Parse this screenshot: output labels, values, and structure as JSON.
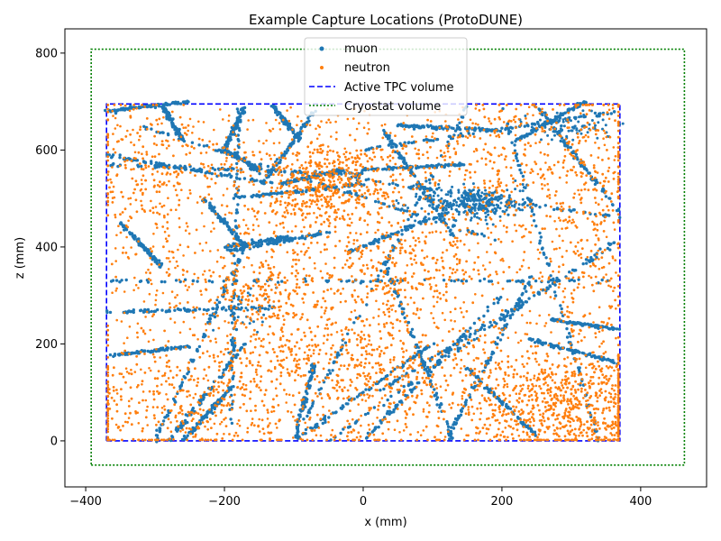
{
  "chart_data": {
    "type": "scatter",
    "title": "Example Capture Locations (ProtoDUNE)",
    "xlabel": "x (mm)",
    "ylabel": "z (mm)",
    "xlim": [
      -430,
      495
    ],
    "ylim": [
      -95,
      850
    ],
    "xticks": [
      -400,
      -200,
      0,
      200,
      400
    ],
    "xtick_labels": [
      "−400",
      "−200",
      "0",
      "200",
      "400"
    ],
    "yticks": [
      0,
      200,
      400,
      600,
      800
    ],
    "ytick_labels": [
      "0",
      "200",
      "400",
      "600",
      "800"
    ],
    "grid": false,
    "legend_position": "top-center",
    "series": [
      {
        "name": "muon",
        "color": "#1f77b4",
        "marker": "circle",
        "track_segments": [
          [
            -370,
            680,
            -250,
            700
          ],
          [
            -370,
            570,
            0,
            550
          ],
          [
            -370,
            330,
            370,
            330
          ],
          [
            -370,
            265,
            -130,
            275
          ],
          [
            -370,
            175,
            -250,
            195
          ],
          [
            -370,
            590,
            -130,
            530
          ],
          [
            -320,
            650,
            200,
            410
          ],
          [
            -50,
            550,
            370,
            460
          ],
          [
            0,
            560,
            150,
            570
          ],
          [
            -120,
            530,
            -30,
            560
          ],
          [
            -190,
            500,
            0,
            530
          ],
          [
            -200,
            400,
            -110,
            420
          ],
          [
            -200,
            390,
            -50,
            430
          ],
          [
            0,
            600,
            370,
            680
          ],
          [
            -190,
            0,
            -180,
            690
          ],
          [
            -200,
            600,
            -170,
            690
          ],
          [
            -300,
            0,
            -170,
            400
          ],
          [
            -230,
            500,
            -170,
            400
          ],
          [
            -290,
            690,
            -260,
            620
          ],
          [
            -350,
            450,
            -290,
            360
          ],
          [
            -280,
            0,
            -170,
            200
          ],
          [
            -260,
            0,
            -190,
            110
          ],
          [
            -100,
            0,
            -70,
            160
          ],
          [
            -100,
            0,
            150,
            690
          ],
          [
            30,
            370,
            130,
            0
          ],
          [
            -20,
            390,
            120,
            470
          ],
          [
            -50,
            0,
            370,
            420
          ],
          [
            120,
            0,
            250,
            360
          ],
          [
            0,
            0,
            200,
            300
          ],
          [
            20,
            100,
            360,
            400
          ],
          [
            -100,
            0,
            100,
            200
          ],
          [
            200,
            690,
            340,
            0
          ],
          [
            250,
            690,
            370,
            470
          ],
          [
            -70,
            680,
            -150,
            520
          ],
          [
            30,
            640,
            130,
            420
          ],
          [
            240,
            210,
            370,
            160
          ],
          [
            270,
            250,
            370,
            230
          ],
          [
            150,
            150,
            250,
            10
          ],
          [
            -130,
            690,
            -90,
            620
          ],
          [
            50,
            650,
            200,
            640
          ],
          [
            -200,
            600,
            -150,
            560
          ],
          [
            220,
            620,
            320,
            700
          ]
        ],
        "track_samples_per_segment": 90,
        "clusters": [
          {
            "center": [
              160,
              490
            ],
            "spread": [
              35,
              18
            ],
            "count": 320
          },
          {
            "center": [
              300,
              650
            ],
            "spread": [
              30,
              15
            ],
            "count": 90
          },
          {
            "center": [
              -180,
              270
            ],
            "spread": [
              20,
              25
            ],
            "count": 40
          }
        ]
      },
      {
        "name": "neutron",
        "color": "#ff7f0e",
        "marker": "circle",
        "clusters": [
          {
            "center": [
              -60,
              530
            ],
            "spread": [
              55,
              45
            ],
            "count": 500
          },
          {
            "center": [
              300,
              70
            ],
            "spread": [
              70,
              60
            ],
            "count": 700
          },
          {
            "center": [
              -150,
              310
            ],
            "spread": [
              45,
              35
            ],
            "count": 180
          },
          {
            "center": [
              60,
              350
            ],
            "spread": [
              70,
              45
            ],
            "count": 220
          },
          {
            "center": [
              -60,
              180
            ],
            "spread": [
              80,
              50
            ],
            "count": 260
          },
          {
            "center": [
              -250,
              80
            ],
            "spread": [
              110,
              70
            ],
            "count": 380
          },
          {
            "center": [
              220,
              560
            ],
            "spread": [
              110,
              70
            ],
            "count": 300
          },
          {
            "center": [
              -310,
              560
            ],
            "spread": [
              50,
              90
            ],
            "count": 200
          },
          {
            "center": [
              60,
              120
            ],
            "spread": [
              80,
              80
            ],
            "count": 260
          },
          {
            "center": [
              330,
              400
            ],
            "spread": [
              40,
              200
            ],
            "count": 220
          }
        ],
        "uniform_count": 1500,
        "uniform_range": {
          "x": [
            -365,
            365
          ],
          "z": [
            5,
            690
          ]
        }
      },
      {
        "name": "Active TPC volume",
        "color": "#0000ff",
        "line_style": "dashed",
        "x": [
          -370,
          370,
          370,
          -370,
          -370
        ],
        "z": [
          0,
          0,
          695,
          695,
          0
        ]
      },
      {
        "name": "Cryostat volume",
        "color": "#008000",
        "line_style": "dotted",
        "x": [
          -392,
          463,
          463,
          -392,
          -392
        ],
        "z": [
          -50,
          -50,
          808,
          808,
          -50
        ]
      }
    ]
  }
}
